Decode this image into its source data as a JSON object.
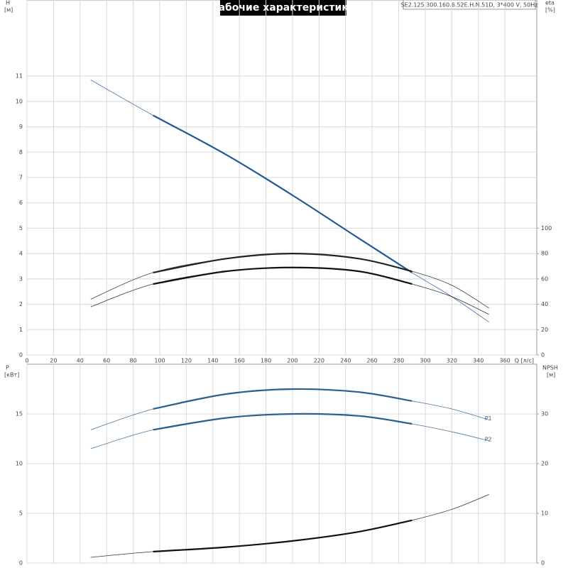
{
  "chart_data": [
    {
      "type": "line",
      "title": "Рабочие характеристики",
      "subtitle": "SE2.125.300.160.6.52E.H.N.51D, 3*400 V, 50Hz",
      "xlabel": "Q [л/с]",
      "ylabel": "H",
      "yunit": "[м]",
      "y2label": "eta",
      "y2unit": "[%]",
      "x": [
        48,
        95,
        150,
        200,
        250,
        290,
        320,
        348
      ],
      "xlim": [
        0,
        384
      ],
      "xticks": [
        0,
        20,
        40,
        60,
        80,
        100,
        120,
        140,
        160,
        180,
        200,
        220,
        240,
        260,
        280,
        300,
        320,
        340,
        360
      ],
      "ylim": [
        0,
        14
      ],
      "yticks": [
        0,
        1,
        2,
        3,
        4,
        5,
        6,
        7,
        8,
        9,
        10,
        11
      ],
      "y2lim": [
        0,
        280
      ],
      "y2ticks": [
        0,
        20,
        40,
        60,
        80,
        100
      ],
      "duty_range": [
        95,
        290
      ],
      "grid": true,
      "series": [
        {
          "color": "#1f5a96",
          "values": [
            10.85,
            9.45,
            7.9,
            6.3,
            4.6,
            3.25,
            2.3,
            1.3
          ]
        },
        {
          "color": "#222222",
          "axis": "y2",
          "values": [
            44,
            65,
            76,
            80,
            76,
            66,
            55,
            37
          ]
        },
        {
          "color": "#111111",
          "axis": "y2",
          "values": [
            38,
            56,
            66,
            69,
            66,
            56,
            46,
            32
          ]
        }
      ]
    },
    {
      "type": "line",
      "ylabel": "P",
      "yunit": "[кВт]",
      "y2label": "NPSH",
      "y2unit": "[м]",
      "x": [
        48,
        95,
        150,
        200,
        250,
        290,
        320,
        348
      ],
      "ylim": [
        0,
        20
      ],
      "yticks": [
        0,
        5,
        10,
        15
      ],
      "y2lim": [
        0,
        40
      ],
      "y2ticks": [
        0,
        10,
        20,
        30
      ],
      "duty_range": [
        95,
        290
      ],
      "grid": true,
      "series": [
        {
          "name": "P1",
          "color": "#2c5f8a",
          "values": [
            13.4,
            15.5,
            17.0,
            17.5,
            17.2,
            16.3,
            15.5,
            14.4
          ]
        },
        {
          "name": "P2",
          "color": "#2c5f8a",
          "values": [
            11.5,
            13.4,
            14.6,
            15.0,
            14.8,
            14.0,
            13.2,
            12.3
          ]
        },
        {
          "color": "#111111",
          "axis": "y2",
          "values": [
            1.15,
            2.3,
            3.2,
            4.45,
            6.3,
            8.6,
            10.8,
            13.8
          ]
        }
      ]
    }
  ]
}
